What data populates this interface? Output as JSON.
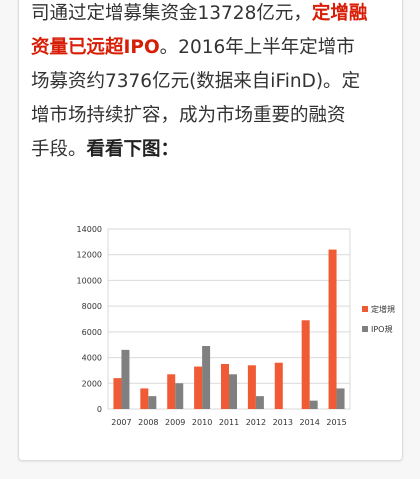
{
  "article": {
    "line1_a": "司通过定增募集资金13728亿元，",
    "line1_b": "定增融",
    "line2_a": "资量已远超IPO",
    "line2_b": "。2016年上半年定增市",
    "line3": "场募资约7376亿元(数据来自iFinD)。定",
    "line4": "增市场持续扩容，成为市场重要的融资",
    "line5_a": "手段。",
    "line5_b": "看看下图："
  },
  "colors": {
    "red_text": "#d81e06",
    "bar_orange": "#f05a35",
    "bar_gray": "#808080"
  },
  "chart_data": {
    "type": "bar",
    "categories": [
      "2007",
      "2008",
      "2009",
      "2010",
      "2011",
      "2012",
      "2013",
      "2014",
      "2015"
    ],
    "series": [
      {
        "name": "定增規",
        "color": "#f05a35",
        "values": [
          2400,
          1600,
          2700,
          3300,
          3500,
          3400,
          3600,
          6900,
          12400
        ]
      },
      {
        "name": "IPO規",
        "color": "#808080",
        "values": [
          4600,
          1000,
          2000,
          4900,
          2700,
          1000,
          0,
          650,
          1600
        ]
      }
    ],
    "yticks": [
      "0",
      "2000",
      "4000",
      "6000",
      "8000",
      "10000",
      "12000",
      "14000"
    ],
    "ylim": [
      0,
      14000
    ],
    "legend": "right"
  }
}
